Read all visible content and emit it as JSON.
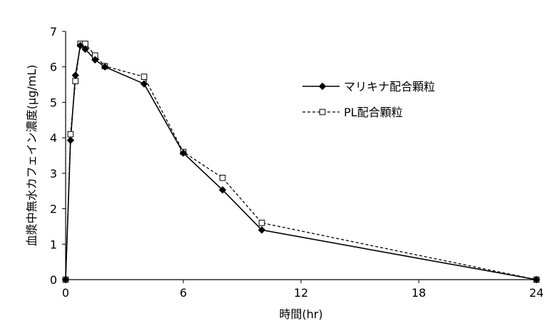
{
  "chart_data": {
    "type": "line",
    "xlabel": "時間(hr)",
    "ylabel": "血漿中無水カフェイン濃度(μg/mL)",
    "xlim": [
      0,
      24
    ],
    "ylim": [
      0,
      7
    ],
    "xticks": [
      0,
      6,
      12,
      18,
      24
    ],
    "yticks": [
      0,
      1,
      2,
      3,
      4,
      5,
      6,
      7
    ],
    "grid": false,
    "legend_position": "right",
    "series": [
      {
        "name": "マリキナ配合顆粒",
        "marker": "diamond-filled",
        "line": "solid",
        "color": "#000000",
        "points": [
          {
            "x": 0,
            "y": 0
          },
          {
            "x": 0.25,
            "y": 3.93
          },
          {
            "x": 0.5,
            "y": 5.76
          },
          {
            "x": 0.75,
            "y": 6.6
          },
          {
            "x": 1,
            "y": 6.5
          },
          {
            "x": 1.5,
            "y": 6.2
          },
          {
            "x": 2,
            "y": 6.0
          },
          {
            "x": 4,
            "y": 5.52
          },
          {
            "x": 6,
            "y": 3.57
          },
          {
            "x": 8,
            "y": 2.53
          },
          {
            "x": 10,
            "y": 1.4
          },
          {
            "x": 24,
            "y": 0
          }
        ]
      },
      {
        "name": "PL配合顆粒",
        "marker": "square-open",
        "line": "dashed",
        "color": "#000000",
        "points": [
          {
            "x": 0,
            "y": 0
          },
          {
            "x": 0.25,
            "y": 4.1
          },
          {
            "x": 0.5,
            "y": 5.6
          },
          {
            "x": 0.75,
            "y": 6.65
          },
          {
            "x": 1,
            "y": 6.65
          },
          {
            "x": 1.5,
            "y": 6.32
          },
          {
            "x": 2,
            "y": 6.02
          },
          {
            "x": 4,
            "y": 5.72
          },
          {
            "x": 6,
            "y": 3.6
          },
          {
            "x": 8,
            "y": 2.87
          },
          {
            "x": 10,
            "y": 1.6
          },
          {
            "x": 24,
            "y": 0
          }
        ]
      }
    ]
  }
}
